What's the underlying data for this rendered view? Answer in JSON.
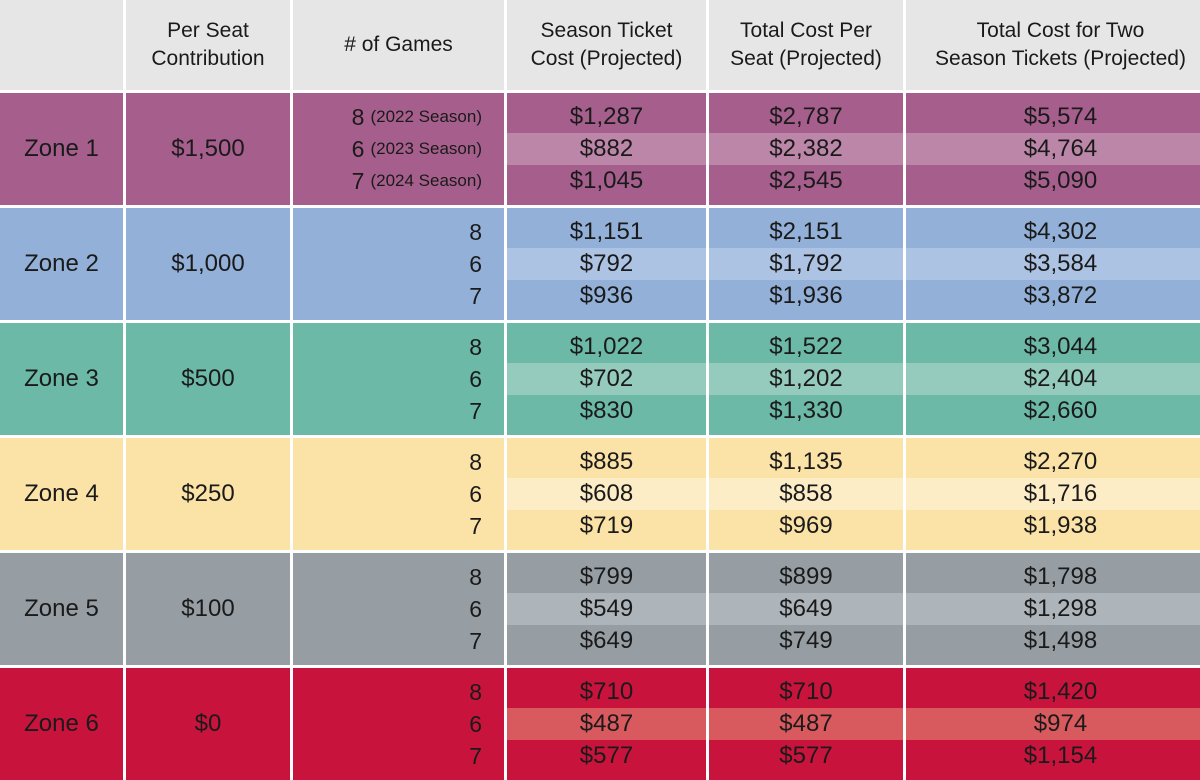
{
  "headers": {
    "zone": "",
    "per_seat": "Per Seat\nContribution",
    "games": "# of Games",
    "season_ticket": "Season Ticket\nCost (Projected)",
    "total_per_seat": "Total Cost Per\nSeat (Projected)",
    "total_two": "Total Cost for Two\nSeason Tickets (Projected)"
  },
  "colors": {
    "header_bg": "#e6e6e6",
    "zone1": "#a65f8c",
    "zone1_light": "#bb86a8",
    "zone2": "#93b0d8",
    "zone2_light": "#adc3e3",
    "zone3": "#6cb9a8",
    "zone3_light": "#95cbbd",
    "zone4": "#fbe3a8",
    "zone4_light": "#fdedc7",
    "zone5": "#969ea4",
    "zone5_light": "#adb4ba",
    "zone6": "#c8143c",
    "zone6_light": "#d85a5f"
  },
  "rows": [
    {
      "zone": "Zone 1",
      "contribution": "$1,500",
      "games": [
        {
          "n": "8",
          "season": "(2022 Season)"
        },
        {
          "n": "6",
          "season": "(2023 Season)"
        },
        {
          "n": "7",
          "season": "(2024 Season)"
        }
      ],
      "season_cost": [
        "$1,287",
        "$882",
        "$1,045"
      ],
      "total_per_seat": [
        "$2,787",
        "$2,382",
        "$2,545"
      ],
      "total_two": [
        "$5,574",
        "$4,764",
        "$5,090"
      ]
    },
    {
      "zone": "Zone 2",
      "contribution": "$1,000",
      "games": [
        {
          "n": "8",
          "season": ""
        },
        {
          "n": "6",
          "season": ""
        },
        {
          "n": "7",
          "season": ""
        }
      ],
      "season_cost": [
        "$1,151",
        "$792",
        "$936"
      ],
      "total_per_seat": [
        "$2,151",
        "$1,792",
        "$1,936"
      ],
      "total_two": [
        "$4,302",
        "$3,584",
        "$3,872"
      ]
    },
    {
      "zone": "Zone 3",
      "contribution": "$500",
      "games": [
        {
          "n": "8",
          "season": ""
        },
        {
          "n": "6",
          "season": ""
        },
        {
          "n": "7",
          "season": ""
        }
      ],
      "season_cost": [
        "$1,022",
        "$702",
        "$830"
      ],
      "total_per_seat": [
        "$1,522",
        "$1,202",
        "$1,330"
      ],
      "total_two": [
        "$3,044",
        "$2,404",
        "$2,660"
      ]
    },
    {
      "zone": "Zone 4",
      "contribution": "$250",
      "games": [
        {
          "n": "8",
          "season": ""
        },
        {
          "n": "6",
          "season": ""
        },
        {
          "n": "7",
          "season": ""
        }
      ],
      "season_cost": [
        "$885",
        "$608",
        "$719"
      ],
      "total_per_seat": [
        "$1,135",
        "$858",
        "$969"
      ],
      "total_two": [
        "$2,270",
        "$1,716",
        "$1,938"
      ]
    },
    {
      "zone": "Zone 5",
      "contribution": "$100",
      "games": [
        {
          "n": "8",
          "season": ""
        },
        {
          "n": "6",
          "season": ""
        },
        {
          "n": "7",
          "season": ""
        }
      ],
      "season_cost": [
        "$799",
        "$549",
        "$649"
      ],
      "total_per_seat": [
        "$899",
        "$649",
        "$749"
      ],
      "total_two": [
        "$1,798",
        "$1,298",
        "$1,498"
      ]
    },
    {
      "zone": "Zone 6",
      "contribution": "$0",
      "games": [
        {
          "n": "8",
          "season": ""
        },
        {
          "n": "6",
          "season": ""
        },
        {
          "n": "7",
          "season": ""
        }
      ],
      "season_cost": [
        "$710",
        "$487",
        "$577"
      ],
      "total_per_seat": [
        "$710",
        "$487",
        "$577"
      ],
      "total_two": [
        "$1,420",
        "$974",
        "$1,154"
      ]
    }
  ]
}
